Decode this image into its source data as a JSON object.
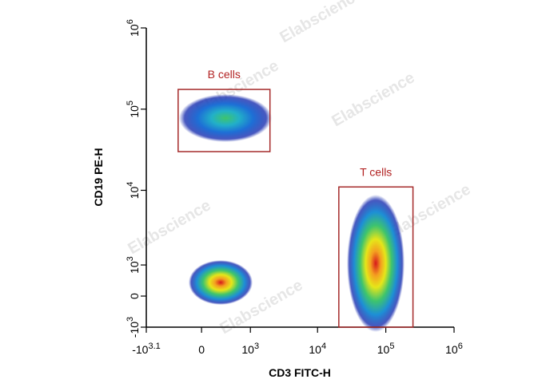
{
  "chart_data": {
    "type": "density",
    "x_label": "CD3 FITC-H",
    "y_label": "CD19 PE-H",
    "watermark": "Elabscience",
    "xscale": "biexponential",
    "yscale": "biexponential",
    "xlim": [
      -1259,
      1000000
    ],
    "ylim": [
      -1000,
      1000000
    ],
    "xticks": [
      {
        "value": -1259,
        "label": "-10^3.1"
      },
      0,
      {
        "value": 1000,
        "label": "10^3"
      },
      {
        "value": 10000,
        "label": "10^4"
      },
      {
        "value": 100000,
        "label": "10^5"
      },
      {
        "value": 1000000,
        "label": "10^6"
      }
    ],
    "yticks": [
      {
        "value": -1000,
        "label": "-10^3"
      },
      0,
      {
        "value": 1000,
        "label": "10^3"
      },
      {
        "value": 10000,
        "label": "10^4"
      },
      {
        "value": 100000,
        "label": "10^5"
      },
      {
        "value": 1000000,
        "label": "10^6"
      }
    ],
    "gates": [
      {
        "name": "B cells",
        "color": "#a52a2a",
        "x": [
          -350,
          1990
        ],
        "y": [
          30000,
          175000
        ]
      },
      {
        "name": "T cells",
        "color": "#a52a2a",
        "x": [
          20500,
          250000
        ],
        "y": [
          -1000,
          11000
        ]
      }
    ]
  }
}
